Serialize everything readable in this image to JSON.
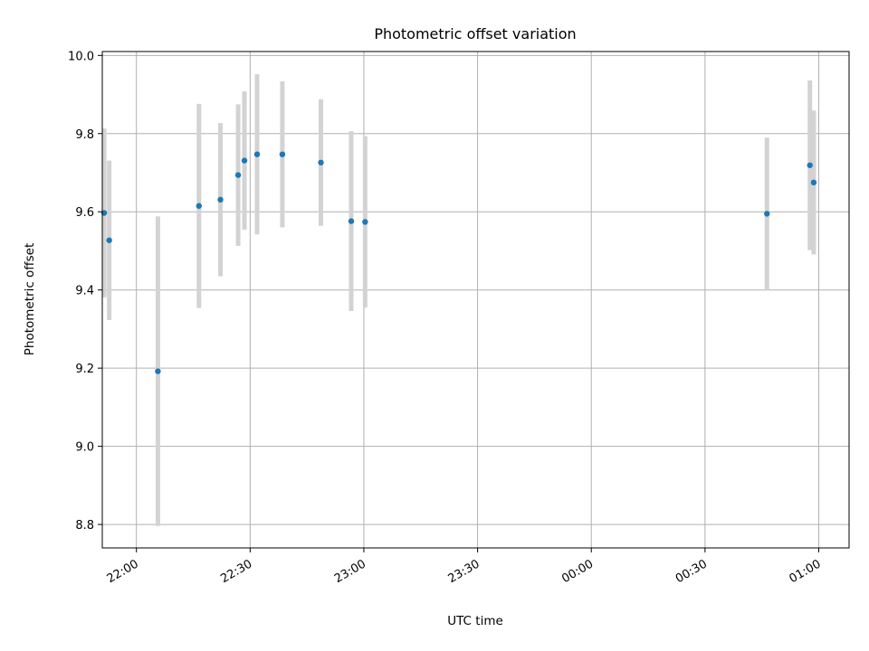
{
  "chart_data": {
    "type": "scatter",
    "title": "Photometric offset variation",
    "xlabel": "UTC time",
    "ylabel": "Photometric offset",
    "xlim": [
      "21:51",
      "01:08"
    ],
    "ylim": [
      8.74,
      10.01
    ],
    "xticks": [
      "22:00",
      "22:30",
      "23:00",
      "23:30",
      "00:00",
      "00:30",
      "01:00"
    ],
    "yticks": [
      "8.8",
      "9.0",
      "9.2",
      "9.4",
      "9.6",
      "9.8",
      "10.0"
    ],
    "grid": true,
    "legend": "none",
    "marker_color": "#1f77b4",
    "errorbar_color": "#d3d3d3",
    "points": [
      {
        "t": "21:51:30",
        "y": 9.597,
        "err": 0.216
      },
      {
        "t": "21:52:50",
        "y": 9.527,
        "err": 0.204
      },
      {
        "t": "22:05:40",
        "y": 9.192,
        "err": 0.396
      },
      {
        "t": "22:16:30",
        "y": 9.615,
        "err": 0.261
      },
      {
        "t": "22:22:10",
        "y": 9.631,
        "err": 0.196
      },
      {
        "t": "22:26:50",
        "y": 9.694,
        "err": 0.181
      },
      {
        "t": "22:28:30",
        "y": 9.731,
        "err": 0.177
      },
      {
        "t": "22:31:50",
        "y": 9.747,
        "err": 0.205
      },
      {
        "t": "22:38:30",
        "y": 9.747,
        "err": 0.187
      },
      {
        "t": "22:48:40",
        "y": 9.726,
        "err": 0.162
      },
      {
        "t": "22:56:40",
        "y": 9.576,
        "err": 0.23
      },
      {
        "t": "23:00:20",
        "y": 9.574,
        "err": 0.219
      },
      {
        "t": "00:46:20",
        "y": 9.595,
        "err": 0.195
      },
      {
        "t": "00:57:40",
        "y": 9.719,
        "err": 0.217
      },
      {
        "t": "00:58:40",
        "y": 9.675,
        "err": 0.184
      }
    ]
  }
}
